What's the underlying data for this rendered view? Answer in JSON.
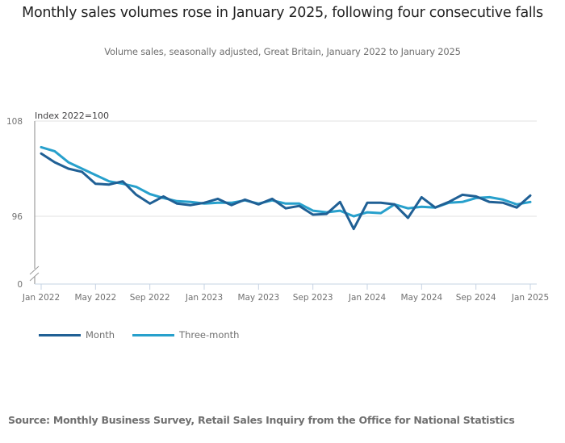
{
  "chart_data": {
    "type": "line",
    "title": "Monthly sales volumes rose in January 2025, following four consecutive falls",
    "subtitle": "Volume sales, seasonally adjusted, Great Britain, January 2022 to January 2025",
    "ylabel": "Index 2022=100",
    "xlabel": "",
    "ylim": [
      96,
      108
    ],
    "y_axis_break_to": 0,
    "y_ticks": [
      108,
      96
    ],
    "y_zero_label": "0",
    "x_ticks": [
      "Jan 2022",
      "May 2022",
      "Sep 2022",
      "Jan 2023",
      "May 2023",
      "Sep 2023",
      "Jan 2024",
      "May 2024",
      "Sep 2024",
      "Jan 2025"
    ],
    "x_tick_index": [
      0,
      4,
      8,
      12,
      16,
      20,
      24,
      28,
      32,
      36
    ],
    "grid": true,
    "legend_position": "bottom-left",
    "x": [
      "Jan 2022",
      "Feb 2022",
      "Mar 2022",
      "Apr 2022",
      "May 2022",
      "Jun 2022",
      "Jul 2022",
      "Aug 2022",
      "Sep 2022",
      "Oct 2022",
      "Nov 2022",
      "Dec 2022",
      "Jan 2023",
      "Feb 2023",
      "Mar 2023",
      "Apr 2023",
      "May 2023",
      "Jun 2023",
      "Jul 2023",
      "Aug 2023",
      "Sep 2023",
      "Oct 2023",
      "Nov 2023",
      "Dec 2023",
      "Jan 2024",
      "Feb 2024",
      "Mar 2024",
      "Apr 2024",
      "May 2024",
      "Jun 2024",
      "Jul 2024",
      "Aug 2024",
      "Sep 2024",
      "Oct 2024",
      "Nov 2024",
      "Dec 2024",
      "Jan 2025"
    ],
    "series": [
      {
        "name": "Month",
        "color": "#206095",
        "values": [
          103.9,
          102.8,
          102.0,
          101.6,
          100.1,
          100.0,
          100.4,
          98.7,
          97.6,
          98.5,
          97.6,
          97.4,
          97.7,
          98.2,
          97.4,
          98.1,
          97.5,
          98.2,
          97.0,
          97.3,
          96.2,
          96.3,
          97.8,
          94.4,
          97.7,
          97.7,
          97.5,
          95.8,
          98.4,
          97.1,
          97.8,
          98.7,
          98.5,
          97.8,
          97.7,
          97.1,
          98.6
        ]
      },
      {
        "name": "Three-month",
        "color": "#27a0cc",
        "values": [
          104.7,
          104.2,
          102.8,
          102.0,
          101.2,
          100.4,
          100.1,
          99.7,
          98.8,
          98.3,
          97.9,
          97.8,
          97.6,
          97.7,
          97.7,
          98.0,
          97.6,
          98.0,
          97.6,
          97.6,
          96.7,
          96.5,
          96.7,
          96.0,
          96.5,
          96.4,
          97.5,
          97.0,
          97.2,
          97.1,
          97.7,
          97.8,
          98.3,
          98.4,
          98.1,
          97.5,
          97.8
        ]
      }
    ]
  },
  "source": "Source: Monthly Business Survey, Retail Sales Inquiry from the Office for National Statistics",
  "legend": {
    "items": [
      {
        "label": "Month",
        "color": "#206095"
      },
      {
        "label": "Three-month",
        "color": "#27a0cc"
      }
    ]
  }
}
